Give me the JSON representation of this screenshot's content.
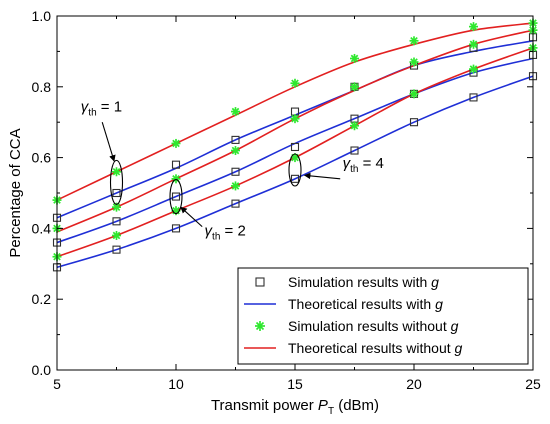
{
  "chart_data": {
    "type": "line",
    "xlabel": "Transmit power P_T (dBm)",
    "ylabel": "Percentage of CCA",
    "xlim": [
      5,
      25
    ],
    "ylim": [
      0.0,
      1.0
    ],
    "xticks": [
      5,
      10,
      15,
      20,
      25
    ],
    "yticks": [
      0.0,
      0.2,
      0.4,
      0.6,
      0.8,
      1.0
    ],
    "xtick_labels": [
      "5",
      "10",
      "15",
      "20",
      "25"
    ],
    "ytick_labels": [
      "0.0",
      "0.2",
      "0.4",
      "0.6",
      "0.8",
      "1.0"
    ],
    "grid": false,
    "legend_position": "bottom-right",
    "legend": [
      {
        "label": "Simulation results with g",
        "marker": "open-square",
        "color": "#303030"
      },
      {
        "label": "Theoretical results with g",
        "marker": "line",
        "color": "#1f2fd6"
      },
      {
        "label": "Simulation results without g",
        "marker": "asterisk",
        "color": "#2ee82e"
      },
      {
        "label": "Theoretical results without g",
        "marker": "line",
        "color": "#e22020"
      }
    ],
    "annotations": [
      {
        "text": "γth = 1",
        "x": 6.0,
        "y": 0.73,
        "target": [
          7.5,
          0.54
        ]
      },
      {
        "text": "γth = 2",
        "x": 11.2,
        "y": 0.38,
        "target": [
          10.0,
          0.47
        ]
      },
      {
        "text": "γth = 4",
        "x": 17.0,
        "y": 0.57,
        "target": [
          15.0,
          0.57
        ]
      }
    ],
    "x": [
      5,
      7.5,
      10,
      12.5,
      15,
      17.5,
      20,
      22.5,
      25
    ],
    "series": [
      {
        "gamma": 1,
        "kind": "theory",
        "with_g": true,
        "y": [
          0.43,
          0.5,
          0.57,
          0.65,
          0.72,
          0.79,
          0.86,
          0.9,
          0.93
        ]
      },
      {
        "gamma": 1,
        "kind": "sim",
        "with_g": true,
        "y": [
          0.43,
          0.5,
          0.58,
          0.65,
          0.73,
          0.8,
          0.86,
          0.91,
          0.94
        ]
      },
      {
        "gamma": 1,
        "kind": "theory",
        "with_g": false,
        "y": [
          0.48,
          0.56,
          0.64,
          0.72,
          0.8,
          0.87,
          0.92,
          0.96,
          0.98
        ]
      },
      {
        "gamma": 1,
        "kind": "sim",
        "with_g": false,
        "y": [
          0.48,
          0.56,
          0.64,
          0.73,
          0.81,
          0.88,
          0.93,
          0.97,
          0.98
        ]
      },
      {
        "gamma": 2,
        "kind": "theory",
        "with_g": true,
        "y": [
          0.36,
          0.42,
          0.49,
          0.56,
          0.64,
          0.71,
          0.78,
          0.84,
          0.88
        ]
      },
      {
        "gamma": 2,
        "kind": "sim",
        "with_g": true,
        "y": [
          0.36,
          0.42,
          0.49,
          0.56,
          0.63,
          0.71,
          0.78,
          0.84,
          0.89
        ]
      },
      {
        "gamma": 2,
        "kind": "theory",
        "with_g": false,
        "y": [
          0.39,
          0.46,
          0.54,
          0.62,
          0.71,
          0.79,
          0.86,
          0.92,
          0.96
        ]
      },
      {
        "gamma": 2,
        "kind": "sim",
        "with_g": false,
        "y": [
          0.4,
          0.46,
          0.54,
          0.62,
          0.71,
          0.8,
          0.87,
          0.92,
          0.96
        ]
      },
      {
        "gamma": 4,
        "kind": "theory",
        "with_g": true,
        "y": [
          0.29,
          0.34,
          0.4,
          0.47,
          0.54,
          0.62,
          0.7,
          0.77,
          0.83
        ]
      },
      {
        "gamma": 4,
        "kind": "sim",
        "with_g": true,
        "y": [
          0.29,
          0.34,
          0.4,
          0.47,
          0.54,
          0.62,
          0.7,
          0.77,
          0.83
        ]
      },
      {
        "gamma": 4,
        "kind": "theory",
        "with_g": false,
        "y": [
          0.32,
          0.38,
          0.45,
          0.52,
          0.6,
          0.69,
          0.78,
          0.85,
          0.91
        ]
      },
      {
        "gamma": 4,
        "kind": "sim",
        "with_g": false,
        "y": [
          0.32,
          0.38,
          0.45,
          0.52,
          0.6,
          0.69,
          0.78,
          0.85,
          0.91
        ]
      }
    ]
  }
}
